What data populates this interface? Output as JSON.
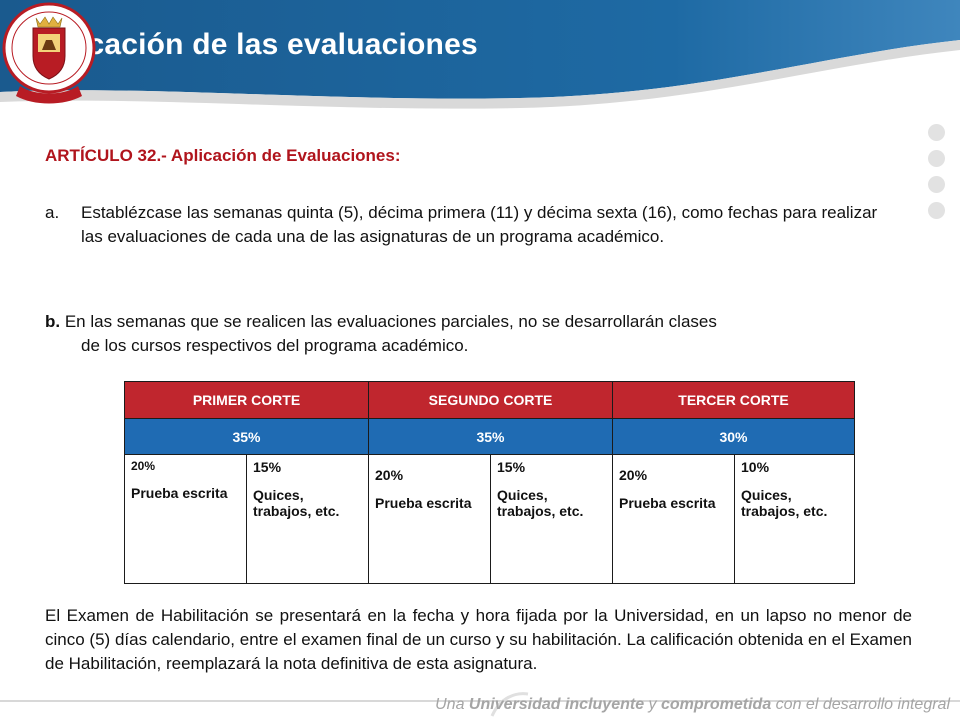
{
  "header": {
    "title": "Aplicación de las evaluaciones",
    "logo_text_top": "UNIVERSIDAD DE PAMPLONA",
    "logo_text_bottom": "COLOMBIA"
  },
  "article": {
    "heading": "ARTÍCULO 32.- Aplicación de Evaluaciones:",
    "item_a_marker": "a.",
    "item_a_text": "Establézcase las semanas quinta (5), décima primera (11) y décima sexta (16), como fechas para realizar las evaluaciones de cada una de las asignaturas de un programa académico.",
    "item_b_marker": "b.",
    "item_b_first": " En las semanas que se realicen las evaluaciones parciales, no se desarrollarán clases",
    "item_b_rest": "de los cursos respectivos del programa académico."
  },
  "table": {
    "headers": [
      "PRIMER CORTE",
      "SEGUNDO CORTE",
      "TERCER CORTE"
    ],
    "percents": [
      "35%",
      "35%",
      "30%"
    ],
    "cells": [
      {
        "pct": "20%",
        "desc": "Prueba escrita"
      },
      {
        "pct": "15%",
        "desc": "Quices, trabajos, etc."
      },
      {
        "pct": "20%",
        "desc": "Prueba escrita"
      },
      {
        "pct": "15%",
        "desc": "Quices, trabajos, etc."
      },
      {
        "pct": "20%",
        "desc": "Prueba escrita"
      },
      {
        "pct": "10%",
        "desc": "Quices, trabajos, etc."
      }
    ]
  },
  "closing": "El Examen de Habilitación se presentará en la fecha y hora fijada por la Universidad, en un lapso no menor de cinco (5) días calendario, entre el examen final de un curso y su habilitación. La calificación obtenida en el Examen de Habilitación, reemplazará la nota definitiva de esta asignatura.",
  "footer": {
    "t1": "Una ",
    "t2": "Universidad incluyente",
    "t3": " y ",
    "t4": "comprometida",
    "t5": " con el desarrollo integral"
  },
  "colors": {
    "banner_blue": "#1d5f95",
    "header_red": "#c0262e",
    "percent_blue": "#1f6bb3",
    "article_red": "#b0141c"
  }
}
